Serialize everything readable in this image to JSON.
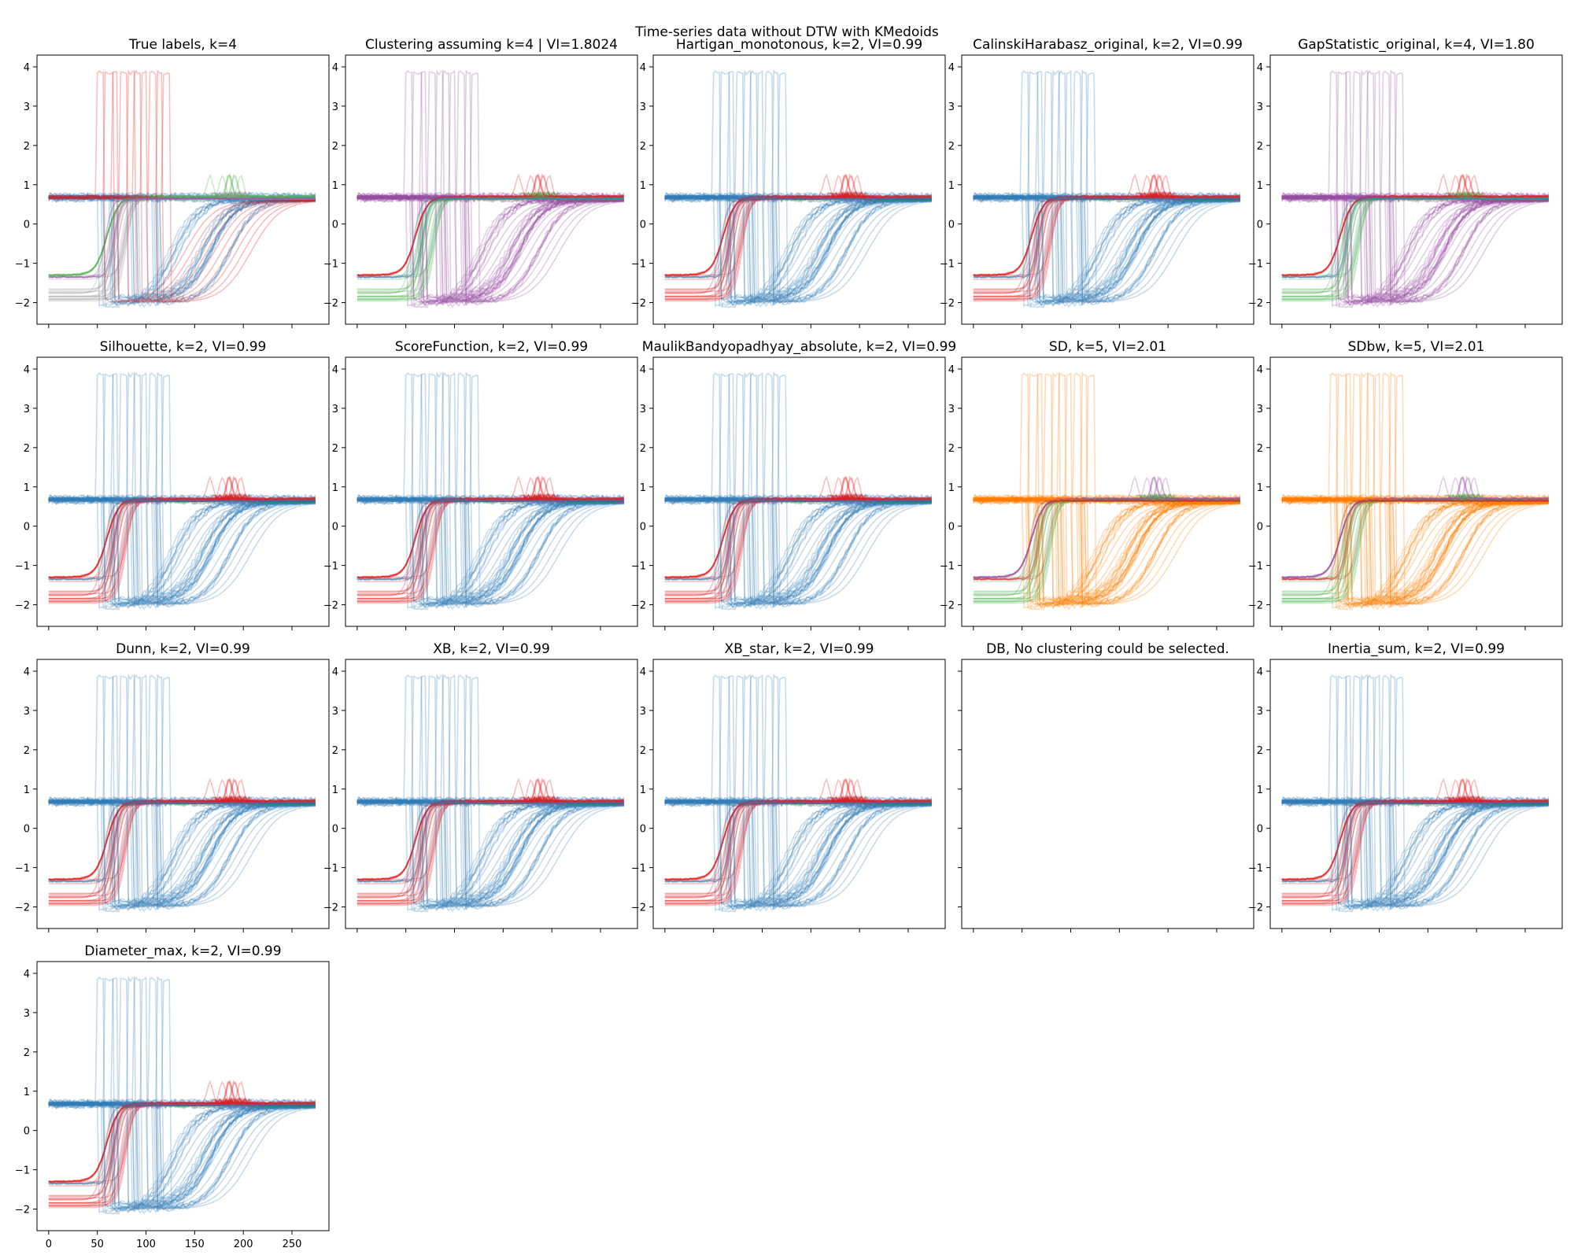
{
  "figure": {
    "suptitle": "Time-series data without DTW with KMedoids"
  },
  "palette": {
    "red": "#e41a1c",
    "blue": "#377eb8",
    "green": "#4daf4a",
    "purple": "#984ea3",
    "orange": "#ff7f00",
    "gray": "#999999"
  },
  "chart_data": {
    "type": "line",
    "description_kind": "small multiples of clustered time series",
    "x_ticks": [
      0,
      50,
      100,
      150,
      200,
      250
    ],
    "y_ticks": [
      -2,
      -1,
      0,
      1,
      2,
      3,
      4
    ],
    "xlim": [
      -12,
      288
    ],
    "ylim": [
      -2.55,
      4.3
    ],
    "series_groups": [
      {
        "name": "spike",
        "baseline": 0.68,
        "onset_range": [
          50,
          118
        ],
        "peak": 3.85,
        "count": 10
      },
      {
        "name": "early-step",
        "start_range": [
          -2.05,
          -1.3
        ],
        "mid_range": [
          55,
          82
        ],
        "end": 0.65,
        "count": 18
      },
      {
        "name": "late-rise",
        "start_range": [
          -2.1,
          -1.8
        ],
        "mid_range": [
          120,
          190
        ],
        "end": 0.62,
        "count": 26
      },
      {
        "name": "flat",
        "level_range": [
          0.6,
          0.78
        ],
        "count": 14
      }
    ],
    "panels": [
      {
        "title": "True labels, k=4",
        "colors": {
          "spike": "red",
          "early-step": "gray",
          "late-rise": "blue",
          "flat": "blue",
          "bumps": "green",
          "extra": "purple"
        }
      },
      {
        "title": "Clustering assuming k=4 | VI=1.8024",
        "colors": {
          "spike": "purple",
          "early-step": "green",
          "late-rise": "purple",
          "flat": "purple",
          "bumps": "red",
          "extra": "blue"
        }
      },
      {
        "title": "Hartigan_monotonous, k=2, VI=0.99",
        "colors": {
          "spike": "blue",
          "early-step": "red",
          "late-rise": "blue",
          "flat": "blue",
          "bumps": "red"
        }
      },
      {
        "title": "CalinskiHarabasz_original, k=2, VI=0.99",
        "colors": {
          "spike": "blue",
          "early-step": "red",
          "late-rise": "blue",
          "flat": "blue",
          "bumps": "red"
        }
      },
      {
        "title": "GapStatistic_original, k=4, VI=1.80",
        "colors": {
          "spike": "purple",
          "early-step": "green",
          "late-rise": "purple",
          "flat": "purple",
          "bumps": "red",
          "extra": "blue"
        }
      },
      {
        "title": "Silhouette, k=2, VI=0.99",
        "colors": {
          "spike": "blue",
          "early-step": "red",
          "late-rise": "blue",
          "flat": "blue",
          "bumps": "red"
        }
      },
      {
        "title": "ScoreFunction, k=2, VI=0.99",
        "colors": {
          "spike": "blue",
          "early-step": "red",
          "late-rise": "blue",
          "flat": "blue",
          "bumps": "red"
        }
      },
      {
        "title": "MaulikBandyopadhyay_absolute, k=2, VI=0.99",
        "colors": {
          "spike": "blue",
          "early-step": "red",
          "late-rise": "blue",
          "flat": "blue",
          "bumps": "red"
        }
      },
      {
        "title": "SD, k=5, VI=2.01",
        "colors": {
          "spike": "orange",
          "early-step": "green",
          "late-rise": "orange",
          "flat": "orange",
          "bumps": "purple",
          "extra": "red"
        }
      },
      {
        "title": "SDbw, k=5, VI=2.01",
        "colors": {
          "spike": "orange",
          "early-step": "green",
          "late-rise": "orange",
          "flat": "orange",
          "bumps": "purple",
          "extra": "red"
        }
      },
      {
        "title": "Dunn, k=2, VI=0.99",
        "colors": {
          "spike": "blue",
          "early-step": "red",
          "late-rise": "blue",
          "flat": "blue",
          "bumps": "red"
        }
      },
      {
        "title": "XB, k=2, VI=0.99",
        "colors": {
          "spike": "blue",
          "early-step": "red",
          "late-rise": "blue",
          "flat": "blue",
          "bumps": "red"
        }
      },
      {
        "title": "XB_star, k=2, VI=0.99",
        "colors": {
          "spike": "blue",
          "early-step": "red",
          "late-rise": "blue",
          "flat": "blue",
          "bumps": "red"
        }
      },
      {
        "title": "DB, No clustering could be selected.",
        "empty": true
      },
      {
        "title": "Inertia_sum, k=2, VI=0.99",
        "colors": {
          "spike": "blue",
          "early-step": "red",
          "late-rise": "blue",
          "flat": "blue",
          "bumps": "red"
        }
      },
      {
        "title": "Diameter_max, k=2, VI=0.99",
        "colors": {
          "spike": "blue",
          "early-step": "red",
          "late-rise": "blue",
          "flat": "blue",
          "bumps": "red"
        },
        "show_x_tick_labels": true
      }
    ]
  }
}
